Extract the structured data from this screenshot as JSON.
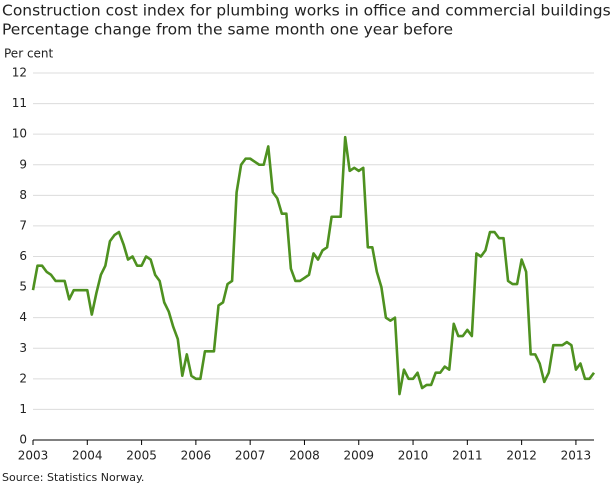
{
  "chart_data": {
    "type": "line",
    "title": "Construction cost index for plumbing works in office and commercial buildings.",
    "subtitle": "Percentage change from the same month one year before",
    "y_axis_label": "Per cent",
    "source": "Source: Statistics Norway.",
    "xlim": [
      2003,
      2013.333
    ],
    "xticks": [
      2003,
      2004,
      2005,
      2006,
      2007,
      2008,
      2009,
      2010,
      2011,
      2012,
      2013
    ],
    "ylim": [
      0,
      12
    ],
    "yticks": [
      0,
      1,
      2,
      3,
      4,
      5,
      6,
      7,
      8,
      9,
      10,
      11,
      12
    ],
    "grid": true,
    "x": [
      2003,
      2003.083,
      2003.167,
      2003.25,
      2003.333,
      2003.417,
      2003.5,
      2003.583,
      2003.667,
      2003.75,
      2003.833,
      2003.917,
      2004,
      2004.083,
      2004.167,
      2004.25,
      2004.333,
      2004.417,
      2004.5,
      2004.583,
      2004.667,
      2004.75,
      2004.833,
      2004.917,
      2005,
      2005.083,
      2005.167,
      2005.25,
      2005.333,
      2005.417,
      2005.5,
      2005.583,
      2005.667,
      2005.75,
      2005.833,
      2005.917,
      2006,
      2006.083,
      2006.167,
      2006.25,
      2006.333,
      2006.417,
      2006.5,
      2006.583,
      2006.667,
      2006.75,
      2006.833,
      2006.917,
      2007,
      2007.083,
      2007.167,
      2007.25,
      2007.333,
      2007.417,
      2007.5,
      2007.583,
      2007.667,
      2007.75,
      2007.833,
      2007.917,
      2008,
      2008.083,
      2008.167,
      2008.25,
      2008.333,
      2008.417,
      2008.5,
      2008.583,
      2008.667,
      2008.75,
      2008.833,
      2008.917,
      2009,
      2009.083,
      2009.167,
      2009.25,
      2009.333,
      2009.417,
      2009.5,
      2009.583,
      2009.667,
      2009.75,
      2009.833,
      2009.917,
      2010,
      2010.083,
      2010.167,
      2010.25,
      2010.333,
      2010.417,
      2010.5,
      2010.583,
      2010.667,
      2010.75,
      2010.833,
      2010.917,
      2011,
      2011.083,
      2011.167,
      2011.25,
      2011.333,
      2011.417,
      2011.5,
      2011.583,
      2011.667,
      2011.75,
      2011.833,
      2011.917,
      2012,
      2012.083,
      2012.167,
      2012.25,
      2012.333,
      2012.417,
      2012.5,
      2012.583,
      2012.667,
      2012.75,
      2012.833,
      2012.917,
      2013,
      2013.083,
      2013.167,
      2013.25,
      2013.333
    ],
    "series": [
      {
        "name": "Plumbing works",
        "color": "#4e9120",
        "values": [
          4.9,
          5.7,
          5.7,
          5.5,
          5.4,
          5.2,
          5.2,
          5.2,
          4.6,
          4.9,
          4.9,
          4.9,
          4.9,
          4.1,
          4.8,
          5.4,
          5.7,
          6.5,
          6.7,
          6.8,
          6.4,
          5.9,
          6.0,
          5.7,
          5.7,
          6.0,
          5.9,
          5.4,
          5.2,
          4.5,
          4.2,
          3.7,
          3.3,
          2.1,
          2.8,
          2.1,
          2.0,
          2.0,
          2.9,
          2.9,
          2.9,
          4.4,
          4.5,
          5.1,
          5.2,
          8.1,
          9.0,
          9.2,
          9.2,
          9.1,
          9.0,
          9.0,
          9.6,
          8.1,
          7.9,
          7.4,
          7.4,
          5.6,
          5.2,
          5.2,
          5.3,
          5.4,
          6.1,
          5.9,
          6.2,
          6.3,
          7.3,
          7.3,
          7.3,
          9.9,
          8.8,
          8.9,
          8.8,
          8.9,
          6.3,
          6.3,
          5.5,
          5.0,
          4.0,
          3.9,
          4.0,
          1.5,
          2.3,
          2.0,
          2.0,
          2.2,
          1.7,
          1.8,
          1.8,
          2.2,
          2.2,
          2.4,
          2.3,
          3.8,
          3.4,
          3.4,
          3.6,
          3.4,
          6.1,
          6.0,
          6.2,
          6.8,
          6.8,
          6.6,
          6.6,
          5.2,
          5.1,
          5.1,
          5.9,
          5.5,
          2.8,
          2.8,
          2.5,
          1.9,
          2.2,
          3.1,
          3.1,
          3.1,
          3.2,
          3.1,
          2.3,
          2.5,
          2.0,
          2.0,
          2.2
        ]
      }
    ]
  }
}
